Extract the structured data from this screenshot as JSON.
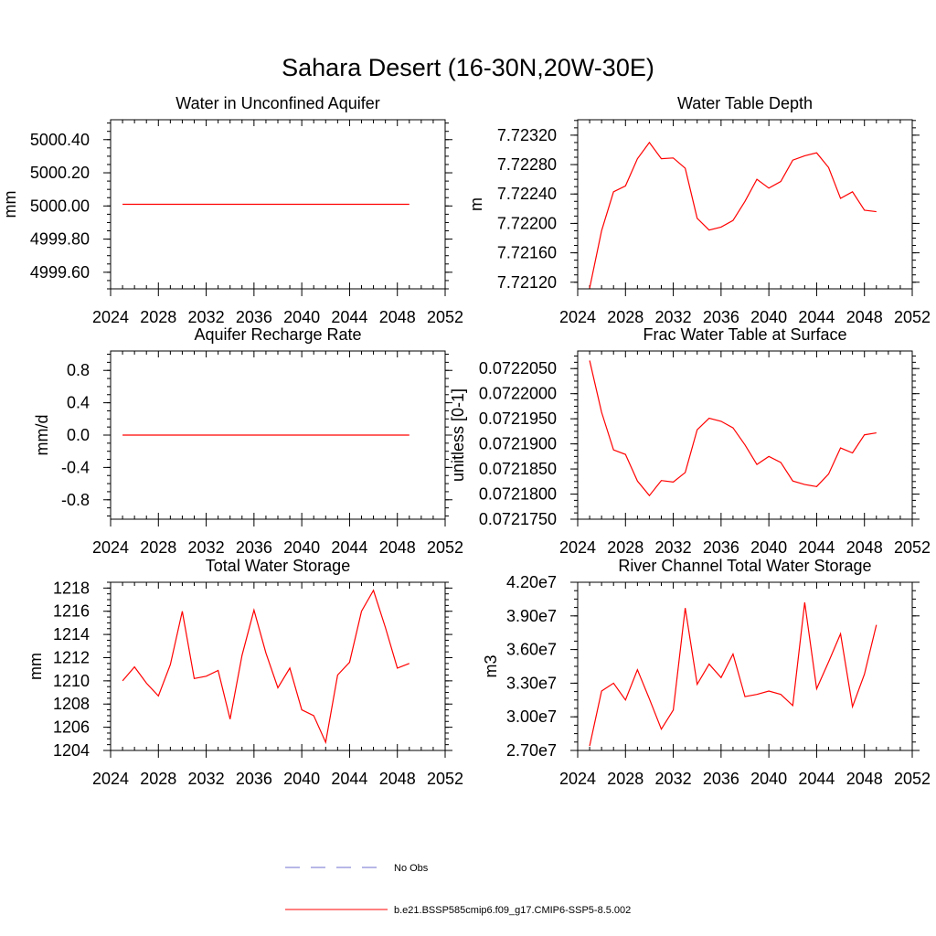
{
  "figure": {
    "title": "Sahara Desert (16-30N,20W-30E)"
  },
  "legend": {
    "obs_label": "No Obs",
    "model_label": "b.e21.BSSP585cmip6.f09_g17.CMIP6-SSP5-8.5.002",
    "obs_color": "#6f6fd0",
    "model_color": "#ff0000"
  },
  "chart_data": [
    {
      "type": "line",
      "title": "Water in Unconfined Aquifer",
      "ylabel": "mm",
      "xlim": [
        2024,
        2052
      ],
      "ylim": [
        4999.5,
        5000.52
      ],
      "xticks": [
        2024,
        2028,
        2032,
        2036,
        2040,
        2044,
        2048,
        2052
      ],
      "yticks": [
        4999.6,
        4999.8,
        5000.0,
        5000.2,
        5000.4
      ],
      "ytick_labels": [
        "4999.60",
        "4999.80",
        "5000.00",
        "5000.20",
        "5000.40"
      ],
      "x": [
        2025,
        2026,
        2027,
        2028,
        2029,
        2030,
        2031,
        2032,
        2033,
        2034,
        2035,
        2036,
        2037,
        2038,
        2039,
        2040,
        2041,
        2042,
        2043,
        2044,
        2045,
        2046,
        2047,
        2048,
        2049
      ],
      "series": [
        {
          "values": [
            5000.01,
            5000.01,
            5000.01,
            5000.01,
            5000.01,
            5000.01,
            5000.01,
            5000.01,
            5000.01,
            5000.01,
            5000.01,
            5000.01,
            5000.01,
            5000.01,
            5000.01,
            5000.01,
            5000.01,
            5000.01,
            5000.01,
            5000.01,
            5000.01,
            5000.01,
            5000.01,
            5000.01,
            5000.01
          ]
        }
      ]
    },
    {
      "type": "line",
      "title": "Water Table Depth",
      "ylabel": "m",
      "xlim": [
        2024,
        2052
      ],
      "ylim": [
        7.72111,
        7.72341
      ],
      "xticks": [
        2024,
        2028,
        2032,
        2036,
        2040,
        2044,
        2048,
        2052
      ],
      "yticks": [
        7.7212,
        7.7216,
        7.722,
        7.7224,
        7.7228,
        7.7232
      ],
      "ytick_labels": [
        "7.72120",
        "7.72160",
        "7.72200",
        "7.72240",
        "7.72280",
        "7.72320"
      ],
      "x": [
        2025,
        2026,
        2027,
        2028,
        2029,
        2030,
        2031,
        2032,
        2033,
        2034,
        2035,
        2036,
        2037,
        2038,
        2039,
        2040,
        2041,
        2042,
        2043,
        2044,
        2045,
        2046,
        2047,
        2048,
        2049
      ],
      "series": [
        {
          "values": [
            7.72112,
            7.7219,
            7.72243,
            7.72251,
            7.72288,
            7.7231,
            7.72288,
            7.72289,
            7.72275,
            7.72207,
            7.72191,
            7.72195,
            7.72204,
            7.7223,
            7.7226,
            7.72248,
            7.72257,
            7.72286,
            7.72292,
            7.72296,
            7.72276,
            7.72234,
            7.72243,
            7.72218,
            7.72216
          ]
        }
      ]
    },
    {
      "type": "line",
      "title": "Aquifer Recharge Rate",
      "ylabel": "mm/d",
      "xlim": [
        2024,
        2052
      ],
      "ylim": [
        -1.04,
        1.04
      ],
      "xticks": [
        2024,
        2028,
        2032,
        2036,
        2040,
        2044,
        2048,
        2052
      ],
      "yticks": [
        -0.8,
        -0.4,
        0.0,
        0.4,
        0.8
      ],
      "ytick_labels": [
        "-0.8",
        "-0.4",
        "0.0",
        "0.4",
        "0.8"
      ],
      "x": [
        2025,
        2026,
        2027,
        2028,
        2029,
        2030,
        2031,
        2032,
        2033,
        2034,
        2035,
        2036,
        2037,
        2038,
        2039,
        2040,
        2041,
        2042,
        2043,
        2044,
        2045,
        2046,
        2047,
        2048,
        2049
      ],
      "series": [
        {
          "values": [
            0,
            0,
            0,
            0,
            0,
            0,
            0,
            0,
            0,
            0,
            0,
            0,
            0,
            0,
            0,
            0,
            0,
            0,
            0,
            0,
            0,
            0,
            0,
            0,
            0
          ]
        }
      ]
    },
    {
      "type": "line",
      "title": "Frac Water Table at Surface",
      "ylabel": "unitless [0-1]",
      "xlim": [
        2024,
        2052
      ],
      "ylim": [
        0.072175,
        0.0722085
      ],
      "xticks": [
        2024,
        2028,
        2032,
        2036,
        2040,
        2044,
        2048,
        2052
      ],
      "yticks": [
        0.072175,
        0.07218,
        0.072185,
        0.07219,
        0.072195,
        0.0722,
        0.072205
      ],
      "ytick_labels": [
        "0.0721750",
        "0.0721800",
        "0.0721850",
        "0.0721900",
        "0.0721950",
        "0.0722000",
        "0.0722050"
      ],
      "x": [
        2025,
        2026,
        2027,
        2028,
        2029,
        2030,
        2031,
        2032,
        2033,
        2034,
        2035,
        2036,
        2037,
        2038,
        2039,
        2040,
        2041,
        2042,
        2043,
        2044,
        2045,
        2046,
        2047,
        2048,
        2049
      ],
      "series": [
        {
          "values": [
            0.0722066,
            0.0721963,
            0.0721888,
            0.0721879,
            0.0721826,
            0.0721797,
            0.0721827,
            0.0721824,
            0.0721843,
            0.0721928,
            0.0721951,
            0.0721945,
            0.0721932,
            0.0721898,
            0.0721859,
            0.0721875,
            0.0721863,
            0.0721826,
            0.0721819,
            0.0721815,
            0.072184,
            0.0721892,
            0.0721882,
            0.0721918,
            0.0721922
          ]
        }
      ]
    },
    {
      "type": "line",
      "title": "Total Water Storage",
      "ylabel": "mm",
      "xlim": [
        2024,
        2052
      ],
      "ylim": [
        1204,
        1218.5
      ],
      "xticks": [
        2024,
        2028,
        2032,
        2036,
        2040,
        2044,
        2048,
        2052
      ],
      "yticks": [
        1204,
        1206,
        1208,
        1210,
        1212,
        1214,
        1216,
        1218
      ],
      "ytick_labels": [
        "1204",
        "1206",
        "1208",
        "1210",
        "1212",
        "1214",
        "1216",
        "1218"
      ],
      "x": [
        2025,
        2026,
        2027,
        2028,
        2029,
        2030,
        2031,
        2032,
        2033,
        2034,
        2035,
        2036,
        2037,
        2038,
        2039,
        2040,
        2041,
        2042,
        2043,
        2044,
        2045,
        2046,
        2047,
        2048,
        2049
      ],
      "series": [
        {
          "values": [
            1210.0,
            1211.2,
            1209.8,
            1208.7,
            1211.4,
            1216.0,
            1210.2,
            1210.4,
            1210.9,
            1206.7,
            1212.2,
            1216.1,
            1212.4,
            1209.4,
            1211.1,
            1207.5,
            1207.0,
            1204.7,
            1210.5,
            1211.6,
            1216.0,
            1217.8,
            1214.6,
            1211.1,
            1211.5
          ]
        }
      ]
    },
    {
      "type": "line",
      "title": "River Channel Total Water Storage",
      "ylabel": "m3",
      "xlim": [
        2024,
        2052
      ],
      "ylim": [
        27000000,
        42000000
      ],
      "xticks": [
        2024,
        2028,
        2032,
        2036,
        2040,
        2044,
        2048,
        2052
      ],
      "yticks": [
        27000000,
        30000000,
        33000000,
        36000000,
        39000000,
        42000000
      ],
      "ytick_labels": [
        "2.70e7",
        "3.00e7",
        "3.30e7",
        "3.60e7",
        "3.90e7",
        "4.20e7"
      ],
      "x": [
        2025,
        2026,
        2027,
        2028,
        2029,
        2030,
        2031,
        2032,
        2033,
        2034,
        2035,
        2036,
        2037,
        2038,
        2039,
        2040,
        2041,
        2042,
        2043,
        2044,
        2045,
        2046,
        2047,
        2048,
        2049
      ],
      "series": [
        {
          "values": [
            27400000,
            32300000,
            33000000,
            31500000,
            34200000,
            31600000,
            28900000,
            30600000,
            39700000,
            32900000,
            34700000,
            33500000,
            35600000,
            31800000,
            32000000,
            32300000,
            32000000,
            31000000,
            40200000,
            32500000,
            34900000,
            37400000,
            30900000,
            33800000,
            38200000
          ]
        }
      ]
    }
  ]
}
